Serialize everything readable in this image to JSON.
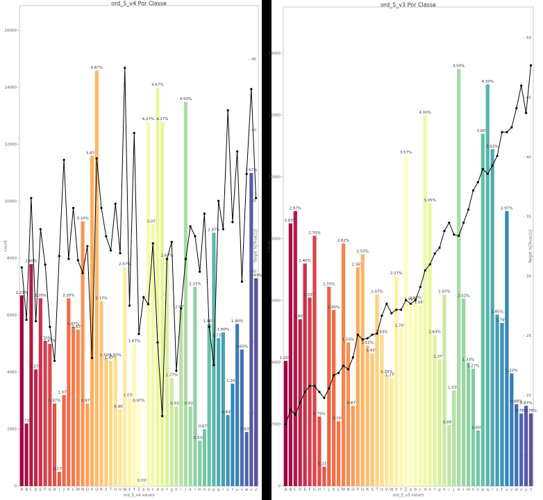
{
  "chart_data": [
    {
      "type": "bar",
      "title": "ord_5_v4 Por Classe",
      "x_label": "ord_5_v4 values",
      "y_label": "Count",
      "y2_label": "Target %[True(1)]",
      "categories": [
        "A",
        "B",
        "C",
        "D",
        "E",
        "F",
        "G",
        "H",
        "I",
        "J",
        "K",
        "L",
        "M",
        "N",
        "O",
        "P",
        "Q",
        "R",
        "S",
        "T",
        "U",
        "V",
        "W",
        "X",
        "Y",
        "Z",
        "a",
        "b",
        "c",
        "d",
        "e",
        "f",
        "g",
        "h",
        "i",
        "j",
        "k",
        "l",
        "m",
        "n",
        "o",
        "p",
        "q",
        "r",
        "s",
        "t",
        "u",
        "v",
        "w",
        "x",
        "y"
      ],
      "values": [
        6700,
        2200,
        7800,
        4100,
        6600,
        5100,
        5000,
        2900,
        500,
        3200,
        6600,
        5600,
        5500,
        9300,
        2900,
        11600,
        14600,
        6500,
        4500,
        4400,
        4500,
        2700,
        7700,
        3100,
        5000,
        2900,
        100,
        12800,
        9200,
        14000,
        12800,
        8000,
        3800,
        2800,
        6200,
        13500,
        2800,
        7000,
        1600,
        2000,
        5700,
        8900,
        5200,
        5400,
        2500,
        3600,
        5700,
        4800,
        1900,
        11000,
        7300
      ],
      "percent_labels": [
        "2.23%",
        "0.73%",
        "2.60%",
        "1.37%",
        "2.20%",
        "1.70%",
        "1.67%",
        "0.97%",
        "0.17%",
        "1.07%",
        "2.20%",
        "1.87%",
        "1.83%",
        "3.10%",
        "0.97%",
        "3.87%",
        "4.87%",
        "2.17%",
        "1.50%",
        "1.47%",
        "1.50%",
        "0.90%",
        "2.57%",
        "1.03%",
        "1.67%",
        "0.97%",
        "0.03%",
        "4.27%",
        "3.07%",
        "4.67%",
        "4.27%",
        "2.67%",
        "1.27%",
        "0.93%",
        "2.07%",
        "4.50%",
        "0.93%",
        "2.33%",
        "0.53%",
        "0.67%",
        "1.90%",
        "2.97%",
        "1.73%",
        "1.80%",
        "0.83%",
        "1.20%",
        "1.90%",
        "1.60%",
        "0.63%",
        "3.67%",
        "2.43%"
      ],
      "target": [
        30.3,
        26.6,
        35.2,
        26.5,
        33,
        30.5,
        26.1,
        23.7,
        31.1,
        37.9,
        30.9,
        34.5,
        30.8,
        29.9,
        31.8,
        23.9,
        38,
        34.5,
        32.5,
        31.5,
        34.8,
        31.3,
        44.4,
        27.6,
        39.8,
        25.6,
        28.2,
        27.7,
        32,
        25,
        19.8,
        30.9,
        32.1,
        23,
        27.4,
        30.9,
        33.2,
        32.5,
        30,
        34.1,
        26.1,
        23.4,
        35,
        33,
        41.4,
        33.5,
        38.5,
        29.3,
        36.9,
        42.9,
        35.2
      ],
      "ylim": [
        0,
        16880
      ],
      "yticks": [
        0,
        2000,
        4000,
        6000,
        8000,
        10000,
        12000,
        14000,
        16000
      ],
      "y2lim": [
        14.85,
        48.8
      ],
      "y2ticks": [
        15,
        20,
        25,
        30,
        35,
        40,
        45
      ],
      "palette": [
        "#9e0142",
        "#d53e4f",
        "#f46d43",
        "#fdae61",
        "#fee08b",
        "#ffffbf",
        "#e6f598",
        "#abdda4",
        "#66c2a5",
        "#3288bd",
        "#5e4fa2"
      ],
      "line_color": "#000000"
    },
    {
      "type": "bar",
      "title": "ord_5_v3 Por Classe",
      "x_label": "ord_5_v3 values",
      "y_label": "Count",
      "y2_label": "Target %[True(1)]",
      "categories": [
        "A",
        "B",
        "C",
        "D",
        "E",
        "F",
        "G",
        "H",
        "I",
        "J",
        "K",
        "L",
        "M",
        "N",
        "O",
        "P",
        "Q",
        "R",
        "S",
        "T",
        "U",
        "V",
        "W",
        "X",
        "Y",
        "Z",
        "a",
        "b",
        "c",
        "d",
        "e",
        "f",
        "g",
        "h",
        "i",
        "j",
        "k",
        "l",
        "m",
        "n",
        "o",
        "p",
        "q",
        "r",
        "s",
        "t",
        "u",
        "v",
        "w",
        "x",
        "y",
        "z"
      ],
      "values": [
        4050,
        8500,
        8900,
        5400,
        7200,
        6100,
        8100,
        2250,
        630,
        6450,
        5700,
        2100,
        7850,
        4650,
        2600,
        7080,
        7500,
        4550,
        4300,
        6200,
        4900,
        3600,
        3500,
        6800,
        5100,
        10700,
        5950,
        6000,
        5850,
        12000,
        9150,
        4900,
        4100,
        6200,
        1980,
        3100,
        13500,
        6070,
        4000,
        3800,
        1800,
        11400,
        13000,
        10900,
        5550,
        5280,
        8900,
        3650,
        2650,
        2350,
        2600,
        2350
      ],
      "percent_labels": [
        "1.35%",
        "2.83%",
        "2.97%",
        "1.80%",
        "2.40%",
        "2.03%",
        "2.70%",
        "0.75%",
        "0.21%",
        "2.15%",
        "1.90%",
        "0.70%",
        "2.62%",
        "1.55%",
        "0.87%",
        "2.36%",
        "2.50%",
        "1.52%",
        "1.43%",
        "2.07%",
        "1.63%",
        "1.20%",
        "1.17%",
        "2.27%",
        "1.70%",
        "3.57%",
        "1.98%",
        "2.00%",
        "1.95%",
        "4.00%",
        "3.05%",
        "1.63%",
        "1.37%",
        "2.07%",
        "0.66%",
        "1.03%",
        "4.50%",
        "2.02%",
        "1.33%",
        "1.27%",
        "0.60%",
        "3.80%",
        "4.33%",
        "3.63%",
        "1.85%",
        "1.76%",
        "2.97%",
        "1.22%",
        "0.88%",
        "0.78%",
        "0.87%",
        "0.78%"
      ],
      "target": [
        17.6,
        18.8,
        18.4,
        19.4,
        20.3,
        20.8,
        20.8,
        20.3,
        19.8,
        20.6,
        21.7,
        21.9,
        22.5,
        22.2,
        23.2,
        25.1,
        24.7,
        24.8,
        25.1,
        25.2,
        26.7,
        27.7,
        26.9,
        27.2,
        27.2,
        28.0,
        27.7,
        28.0,
        29.1,
        30.5,
        31.0,
        31.9,
        32.4,
        33.8,
        34.5,
        33.5,
        33.4,
        34.5,
        35.6,
        37.2,
        37.9,
        39.0,
        38.6,
        39.3,
        40.1,
        42.1,
        42.1,
        42.5,
        44.1,
        46.0,
        43.7,
        47.7
      ],
      "ylim": [
        0,
        15500
      ],
      "yticks": [
        0,
        2000,
        4000,
        6000,
        8000,
        10000,
        12000,
        14000
      ],
      "y2lim": [
        12.4,
        52.6
      ],
      "y2ticks": [
        15,
        20,
        25,
        30,
        35,
        40,
        45,
        50
      ],
      "palette": [
        "#9e0142",
        "#d53e4f",
        "#f46d43",
        "#fdae61",
        "#fee08b",
        "#ffffbf",
        "#e6f598",
        "#abdda4",
        "#66c2a5",
        "#3288bd",
        "#5e4fa2"
      ],
      "line_color": "#000000"
    }
  ]
}
